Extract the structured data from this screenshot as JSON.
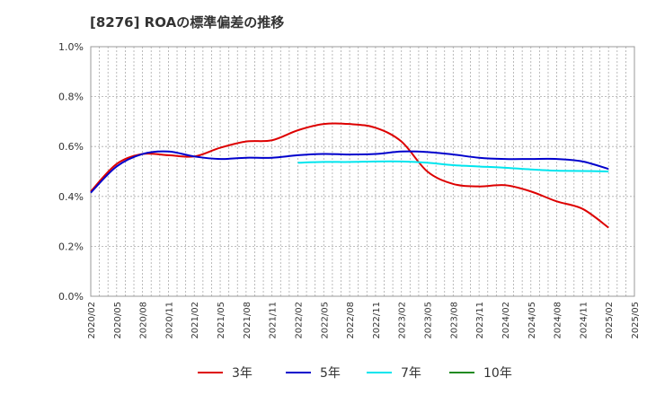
{
  "title": "[8276]  ROAの標準偏差の推移",
  "chart_data": {
    "type": "line",
    "title": "[8276]  ROAの標準偏差の推移",
    "xlabel": "",
    "ylabel": "",
    "ylim": [
      0.0,
      1.0
    ],
    "yticks": [
      "0.0%",
      "0.2%",
      "0.4%",
      "0.6%",
      "0.8%",
      "1.0%"
    ],
    "xticks": [
      "2020/02",
      "2020/05",
      "2020/08",
      "2020/11",
      "2021/02",
      "2021/05",
      "2021/08",
      "2021/11",
      "2022/02",
      "2022/05",
      "2022/08",
      "2022/11",
      "2023/02",
      "2023/05",
      "2023/08",
      "2023/11",
      "2024/02",
      "2024/05",
      "2024/08",
      "2024/11",
      "2025/02",
      "2025/05"
    ],
    "grid": true,
    "legend_position": "bottom",
    "series": [
      {
        "name": "3年",
        "color": "#dd0000",
        "x": [
          "2020/02",
          "2020/05",
          "2020/08",
          "2020/11",
          "2021/02",
          "2021/05",
          "2021/08",
          "2021/11",
          "2022/02",
          "2022/05",
          "2022/08",
          "2022/11",
          "2023/02",
          "2023/05",
          "2023/08",
          "2023/11",
          "2024/02",
          "2024/05",
          "2024/08",
          "2024/11",
          "2025/02"
        ],
        "values": [
          0.42,
          0.53,
          0.57,
          0.565,
          0.56,
          0.595,
          0.62,
          0.625,
          0.665,
          0.69,
          0.69,
          0.675,
          0.62,
          0.5,
          0.45,
          0.44,
          0.445,
          0.42,
          0.38,
          0.35,
          0.275
        ]
      },
      {
        "name": "5年",
        "color": "#0000cc",
        "x": [
          "2020/02",
          "2020/05",
          "2020/08",
          "2020/11",
          "2021/02",
          "2021/05",
          "2021/08",
          "2021/11",
          "2022/02",
          "2022/05",
          "2022/08",
          "2022/11",
          "2023/02",
          "2023/05",
          "2023/08",
          "2023/11",
          "2024/02",
          "2024/05",
          "2024/08",
          "2024/11",
          "2025/02"
        ],
        "values": [
          0.415,
          0.52,
          0.57,
          0.58,
          0.56,
          0.55,
          0.555,
          0.555,
          0.565,
          0.57,
          0.568,
          0.57,
          0.58,
          0.578,
          0.568,
          0.555,
          0.55,
          0.55,
          0.55,
          0.54,
          0.51
        ]
      },
      {
        "name": "7年",
        "color": "#00e5ee",
        "x": [
          "2022/02",
          "2022/05",
          "2022/08",
          "2022/11",
          "2023/02",
          "2023/05",
          "2023/08",
          "2023/11",
          "2024/02",
          "2024/05",
          "2024/08",
          "2024/11",
          "2025/02"
        ],
        "values": [
          0.535,
          0.538,
          0.538,
          0.54,
          0.54,
          0.535,
          0.525,
          0.52,
          0.515,
          0.508,
          0.503,
          0.502,
          0.5
        ]
      },
      {
        "name": "10年",
        "color": "#228b22",
        "x": [],
        "values": []
      }
    ]
  }
}
